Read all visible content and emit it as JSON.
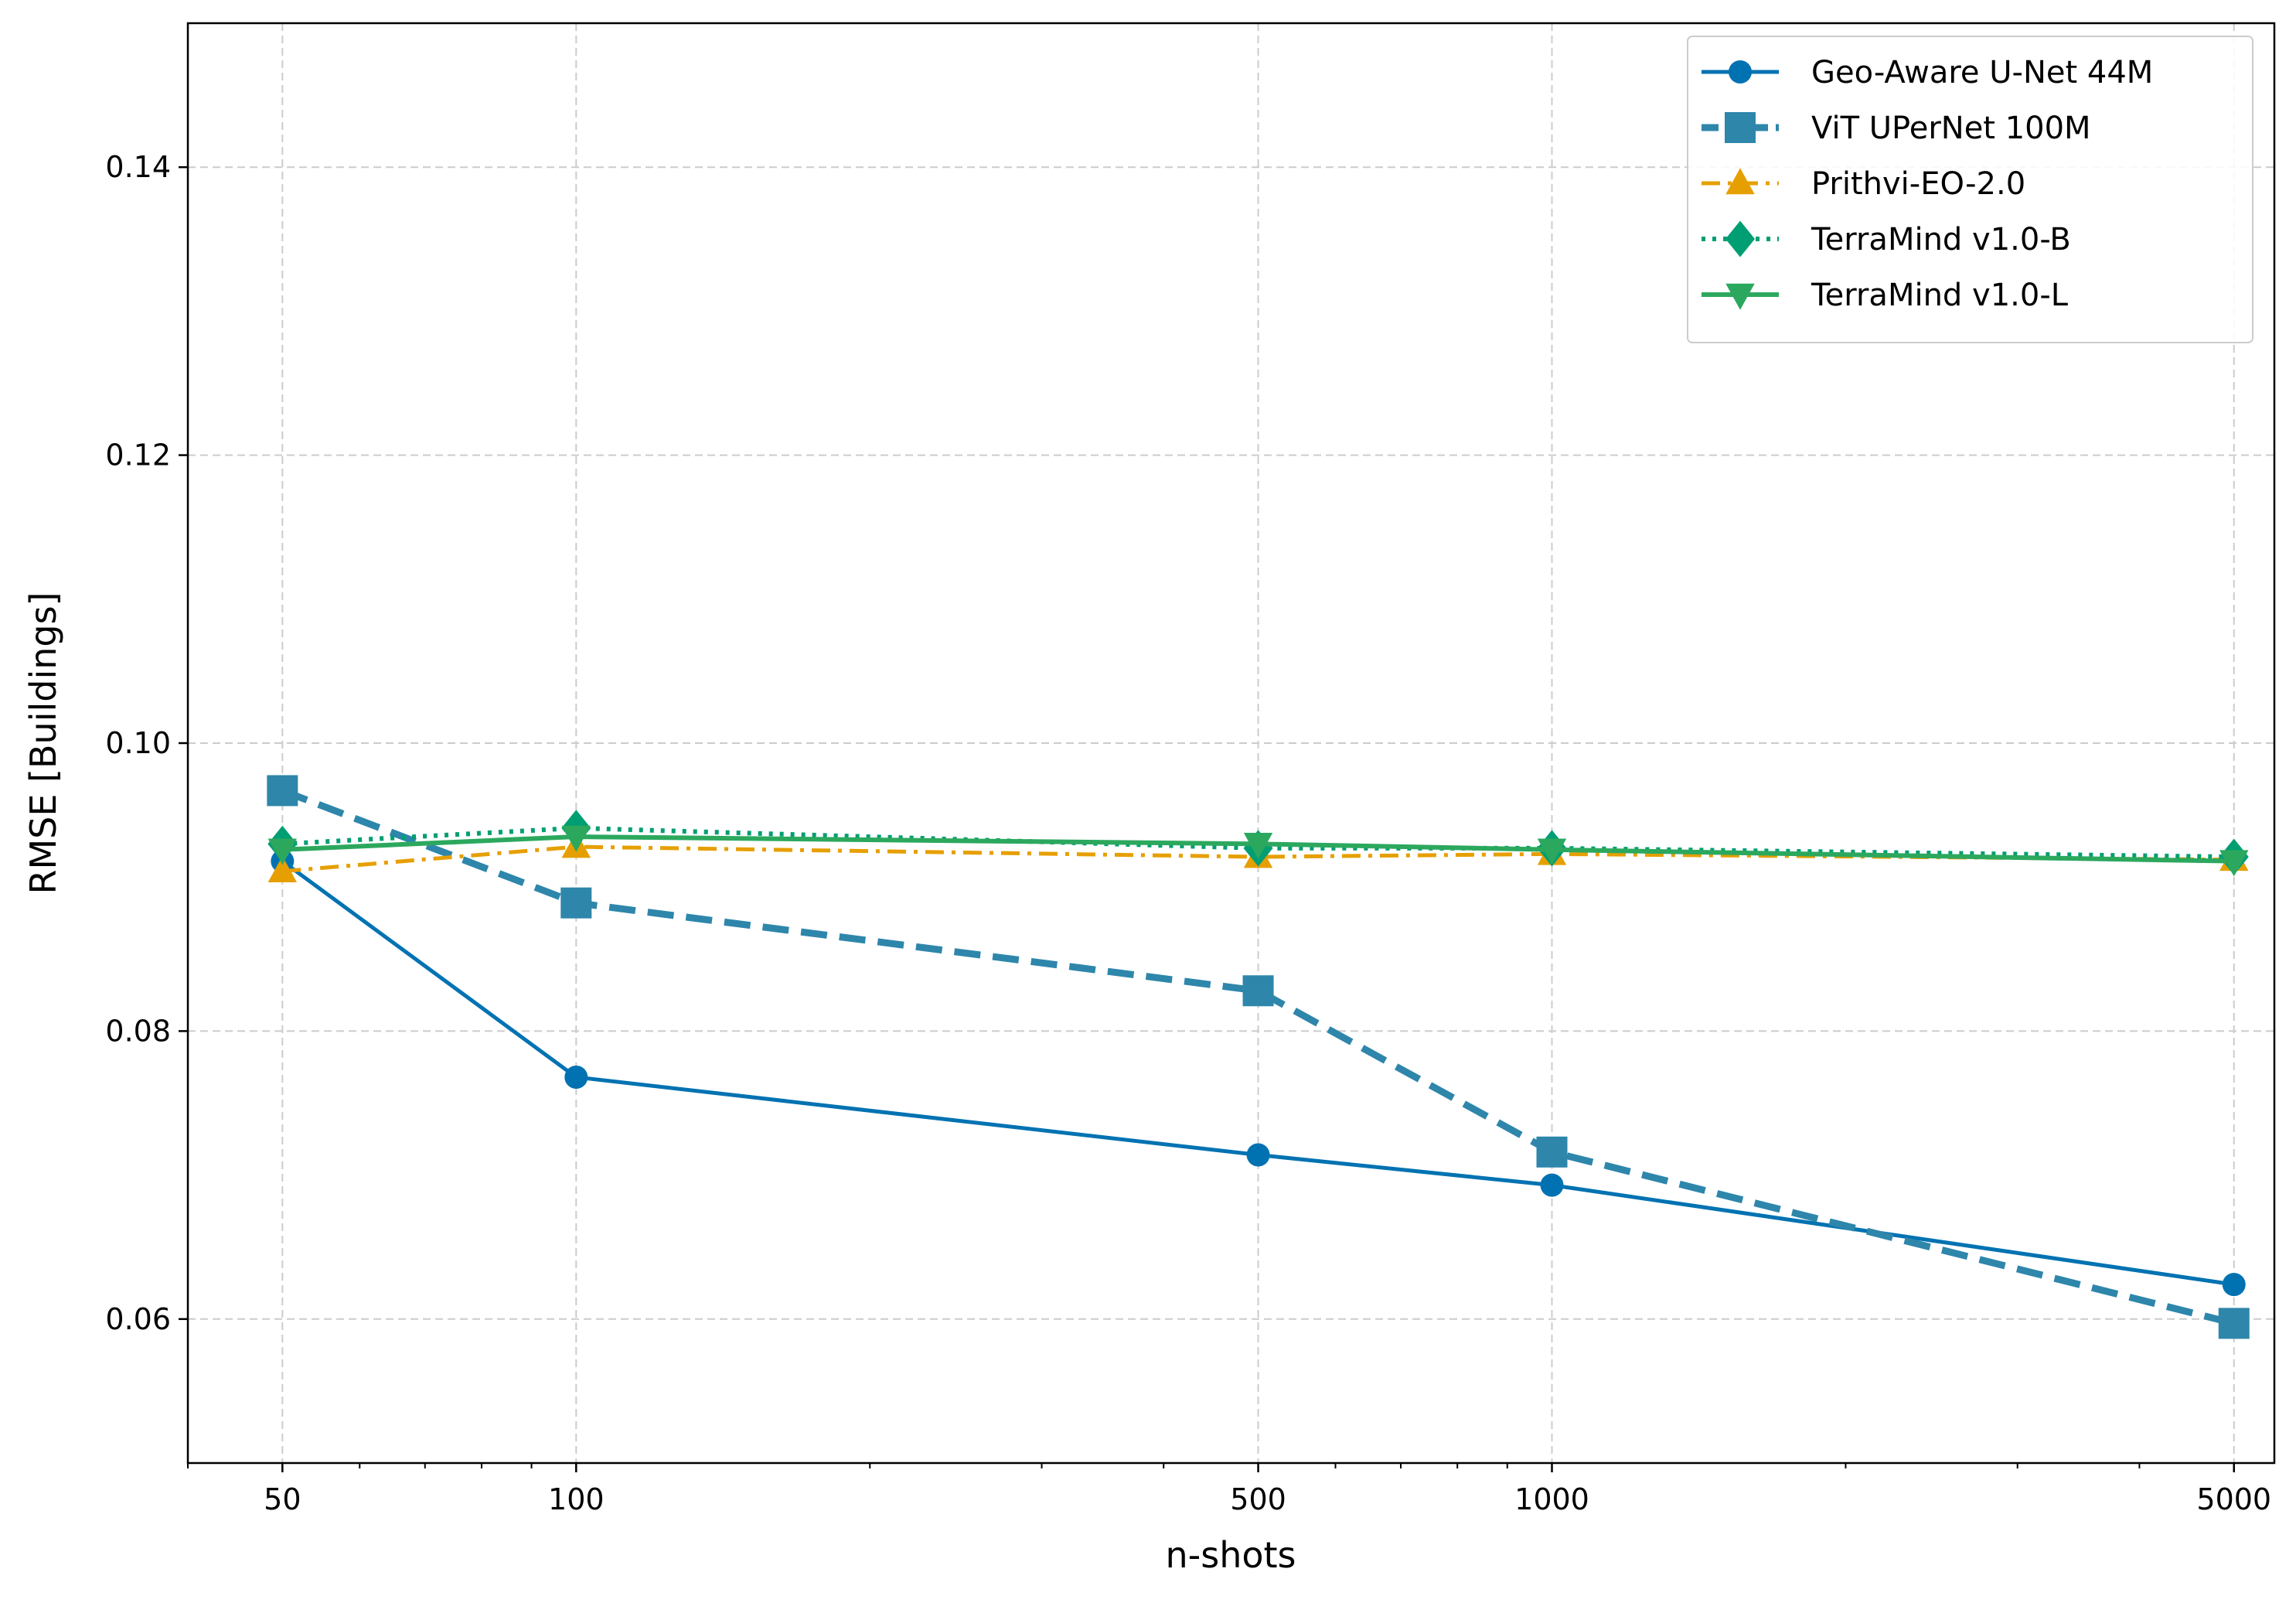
{
  "chart_data": {
    "type": "line",
    "title": "",
    "xlabel": "n-shots",
    "ylabel": "RMSE [Buildings]",
    "xscale": "log",
    "xlim": [
      40,
      5500
    ],
    "ylim": [
      0.05,
      0.15
    ],
    "x_ticks": [
      50,
      100,
      500,
      1000,
      5000
    ],
    "x_tick_labels": [
      "50",
      "100",
      "500",
      "1000",
      "5000"
    ],
    "y_ticks": [
      0.06,
      0.08,
      0.1,
      0.12,
      0.14
    ],
    "y_tick_labels": [
      "0.06",
      "0.08",
      "0.10",
      "0.12",
      "0.14"
    ],
    "grid": true,
    "legend_position": "top-right",
    "x": [
      50,
      100,
      500,
      1000,
      5000
    ],
    "series": [
      {
        "name": "Geo-Aware U-Net 44M",
        "values": [
          0.0918,
          0.0768,
          0.0714,
          0.0693,
          0.0624
        ],
        "color": "#0072B2",
        "marker": "circle",
        "linestyle": "solid",
        "linewidth": 5
      },
      {
        "name": "ViT UPerNet 100M",
        "values": [
          0.0967,
          0.0889,
          0.0828,
          0.0716,
          0.0597
        ],
        "color": "#2E86AB",
        "marker": "square",
        "linestyle": "dashed",
        "linewidth": 9
      },
      {
        "name": "Prithvi-EO-2.0",
        "values": [
          0.0911,
          0.0928,
          0.0921,
          0.0923,
          0.0919
        ],
        "color": "#E69F00",
        "marker": "triangle-up",
        "linestyle": "dashdot",
        "linewidth": 5
      },
      {
        "name": "TerraMind v1.0-B",
        "values": [
          0.093,
          0.0941,
          0.0927,
          0.0927,
          0.0921
        ],
        "color": "#009E73",
        "marker": "diamond",
        "linestyle": "dotted",
        "linewidth": 6
      },
      {
        "name": "TerraMind v1.0-L",
        "values": [
          0.0926,
          0.0935,
          0.093,
          0.0926,
          0.0918
        ],
        "color": "#2CA85E",
        "marker": "triangle-down",
        "linestyle": "solid",
        "linewidth": 6
      }
    ]
  }
}
